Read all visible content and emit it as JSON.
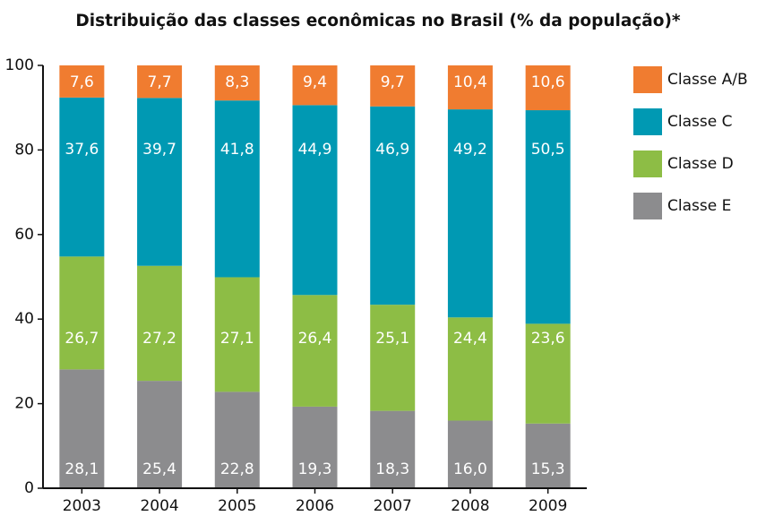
{
  "chart_data": {
    "type": "stacked-bar",
    "title": "Distribuição das classes econômicas no Brasil (% da população)*",
    "categories": [
      "2003",
      "2004",
      "2005",
      "2006",
      "2007",
      "2008",
      "2009"
    ],
    "series": [
      {
        "name": "Classe E",
        "color": "#8c8c8e",
        "values": [
          28.1,
          25.4,
          22.8,
          19.3,
          18.3,
          16.0,
          15.3
        ],
        "value_labels": [
          "28,1",
          "25,4",
          "22,8",
          "19,3",
          "18,3",
          "16,0",
          "15,3"
        ]
      },
      {
        "name": "Classe D",
        "color": "#8dbd45",
        "values": [
          26.7,
          27.2,
          27.1,
          26.4,
          25.1,
          24.4,
          23.6
        ],
        "value_labels": [
          "26,7",
          "27,2",
          "27,1",
          "26,4",
          "25,1",
          "24,4",
          "23,6"
        ]
      },
      {
        "name": "Classe C",
        "color": "#0099b3",
        "values": [
          37.6,
          39.7,
          41.8,
          44.9,
          46.9,
          49.2,
          50.5
        ],
        "value_labels": [
          "37,6",
          "39,7",
          "41,8",
          "44,9",
          "46,9",
          "49,2",
          "50,5"
        ]
      },
      {
        "name": "Classe A/B",
        "color": "#f07c30",
        "values": [
          7.6,
          7.7,
          8.3,
          9.4,
          9.7,
          10.4,
          10.6
        ],
        "value_labels": [
          "7,6",
          "7,7",
          "8,3",
          "9,4",
          "9,7",
          "10,4",
          "10,6"
        ]
      }
    ],
    "ylim": [
      0,
      100
    ],
    "yticks": [
      0,
      20,
      40,
      60,
      80,
      100
    ],
    "legend": "right"
  }
}
